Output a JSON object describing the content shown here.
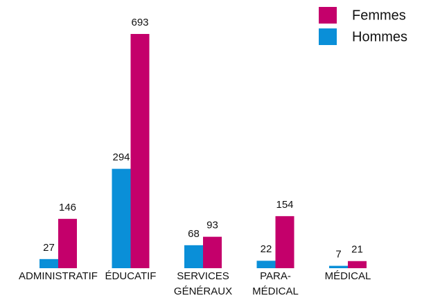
{
  "chart_data": {
    "type": "bar",
    "categories": [
      [
        "ADMINISTRATIF"
      ],
      [
        "ÉDUCATIF"
      ],
      [
        "SERVICES",
        "GÉNÉRAUX"
      ],
      [
        "PARA-",
        "MÉDICAL"
      ],
      [
        "MÉDICAL"
      ]
    ],
    "series": [
      {
        "name": "Femmes",
        "color": "#c4006b",
        "values": [
          146,
          693,
          93,
          154,
          21
        ]
      },
      {
        "name": "Hommes",
        "color": "#0a8fd8",
        "values": [
          27,
          294,
          68,
          22,
          7
        ]
      }
    ]
  }
}
